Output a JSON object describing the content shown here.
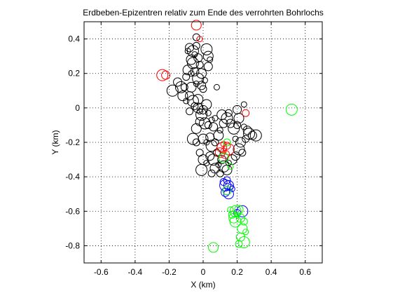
{
  "chart_data": {
    "type": "scatter",
    "title": "Erdbeben-Epizentren relativ zum Ende des verrohrten Bohrlochs",
    "xlabel": "X (km)",
    "ylabel": "Y (km)",
    "xlim": [
      -0.7,
      0.7
    ],
    "ylim": [
      -0.9,
      0.5
    ],
    "xticks": [
      -0.6,
      -0.4,
      -0.2,
      0,
      0.2,
      0.4,
      0.6
    ],
    "xticklabels": [
      "-0.6",
      "-0.4",
      "-0.2",
      "0",
      "0.2",
      "0.4",
      "0.6"
    ],
    "yticks": [
      0.4,
      0.2,
      0,
      -0.2,
      -0.4,
      -0.6,
      -0.8
    ],
    "yticklabels": [
      "0.4",
      "0.2",
      "0",
      "-0.2",
      "-0.4",
      "-0.6",
      "-0.8"
    ],
    "grid": true,
    "grid_style": "dotted",
    "marker": "open-circle",
    "series": [
      {
        "color": "#000000",
        "points": [
          [
            -0.09,
            0.33
          ],
          [
            -0.08,
            0.35
          ],
          [
            -0.06,
            0.33
          ],
          [
            -0.04,
            0.36
          ],
          [
            -0.07,
            0.28
          ],
          [
            -0.05,
            0.31
          ],
          [
            -0.03,
            0.29
          ],
          [
            -0.06,
            0.26
          ],
          [
            -0.02,
            0.25
          ],
          [
            0.03,
            0.3
          ],
          [
            0.04,
            0.28
          ],
          [
            0.03,
            0.24
          ],
          [
            0.02,
            0.34
          ],
          [
            -0.04,
            0.41
          ],
          [
            -0.09,
            0.22
          ],
          [
            -0.07,
            0.2
          ],
          [
            -0.05,
            0.21
          ],
          [
            -0.03,
            0.17
          ],
          [
            -0.1,
            0.18
          ],
          [
            -0.01,
            0.2
          ],
          [
            0.01,
            0.16
          ],
          [
            -0.15,
            0.15
          ],
          [
            -0.13,
            0.12
          ],
          [
            -0.11,
            0.12
          ],
          [
            -0.07,
            0.12
          ],
          [
            -0.04,
            0.14
          ],
          [
            -0.01,
            0.13
          ],
          [
            -0.18,
            0.1
          ],
          [
            0.0,
            0.11
          ],
          [
            -0.12,
            0.07
          ],
          [
            -0.1,
            0.04
          ],
          [
            -0.08,
            0.07
          ],
          [
            -0.06,
            0.04
          ],
          [
            -0.05,
            0.01
          ],
          [
            -0.03,
            0.0
          ],
          [
            -0.02,
            -0.02
          ],
          [
            0.0,
            -0.01
          ],
          [
            -0.01,
            -0.04
          ],
          [
            -0.08,
            -0.02
          ],
          [
            0.02,
            0.02
          ],
          [
            0.03,
            -0.03
          ],
          [
            -0.02,
            -0.08
          ],
          [
            0.01,
            -0.09
          ],
          [
            0.03,
            -0.1
          ],
          [
            -0.04,
            -0.12
          ],
          [
            0.05,
            -0.07
          ],
          [
            0.06,
            -0.11
          ],
          [
            -0.06,
            -0.18
          ],
          [
            -0.04,
            -0.2
          ],
          [
            0.0,
            -0.18
          ],
          [
            0.02,
            -0.2
          ],
          [
            0.04,
            -0.17
          ],
          [
            0.05,
            -0.22
          ],
          [
            0.07,
            -0.2
          ],
          [
            0.09,
            -0.16
          ],
          [
            0.1,
            -0.13
          ],
          [
            0.12,
            -0.09
          ],
          [
            0.14,
            -0.06
          ],
          [
            0.15,
            -0.03
          ],
          [
            0.11,
            -0.04
          ],
          [
            0.07,
            -0.06
          ],
          [
            0.16,
            -0.09
          ],
          [
            0.18,
            -0.12
          ],
          [
            0.2,
            -0.1
          ],
          [
            0.21,
            -0.06
          ],
          [
            0.24,
            -0.11
          ],
          [
            0.26,
            -0.13
          ],
          [
            0.27,
            -0.15
          ],
          [
            0.25,
            -0.18
          ],
          [
            0.22,
            -0.2
          ],
          [
            0.19,
            -0.18
          ],
          [
            0.29,
            -0.16
          ],
          [
            0.31,
            -0.16
          ],
          [
            -0.02,
            -0.26
          ],
          [
            0.0,
            -0.3
          ],
          [
            0.02,
            -0.32
          ],
          [
            0.04,
            -0.28
          ],
          [
            0.06,
            -0.3
          ],
          [
            0.08,
            -0.26
          ],
          [
            0.07,
            -0.35
          ],
          [
            0.09,
            -0.33
          ],
          [
            0.11,
            -0.3
          ],
          [
            0.12,
            -0.34
          ],
          [
            0.1,
            -0.38
          ],
          [
            0.14,
            -0.36
          ],
          [
            0.15,
            -0.32
          ],
          [
            0.19,
            -0.28
          ],
          [
            0.21,
            -0.24
          ],
          [
            0.23,
            -0.26
          ],
          [
            0.17,
            -0.3
          ],
          [
            0.24,
            0.02
          ],
          [
            0.2,
            -0.01
          ],
          [
            -0.01,
            -0.36
          ],
          [
            0.05,
            -0.38
          ],
          [
            -0.03,
            0.05
          ],
          [
            0.08,
            0.12
          ]
        ]
      },
      {
        "color": "#ff0000",
        "points": [
          [
            -0.04,
            0.48
          ],
          [
            -0.02,
            0.4
          ],
          [
            -0.22,
            0.19
          ],
          [
            -0.24,
            0.19
          ],
          [
            0.25,
            -0.03
          ],
          [
            0.11,
            -0.23
          ],
          [
            0.12,
            -0.25
          ],
          [
            0.13,
            -0.27
          ],
          [
            0.15,
            -0.24
          ],
          [
            0.14,
            -0.22
          ],
          [
            0.1,
            -0.26
          ],
          [
            0.12,
            -0.21
          ]
        ]
      },
      {
        "color": "#0000ff",
        "points": [
          [
            0.14,
            -0.42
          ],
          [
            0.15,
            -0.45
          ],
          [
            0.16,
            -0.46
          ],
          [
            0.14,
            -0.48
          ],
          [
            0.13,
            -0.45
          ],
          [
            0.12,
            -0.43
          ],
          [
            0.15,
            -0.5
          ],
          [
            0.17,
            -0.47
          ],
          [
            0.13,
            -0.49
          ],
          [
            0.23,
            -0.6
          ],
          [
            0.2,
            -0.61
          ]
        ]
      },
      {
        "color": "#00ff00",
        "points": [
          [
            0.52,
            -0.01
          ],
          [
            0.14,
            -0.2
          ],
          [
            0.12,
            -0.29
          ],
          [
            0.16,
            -0.34
          ],
          [
            0.14,
            -0.48
          ],
          [
            0.19,
            -0.6
          ],
          [
            0.17,
            -0.62
          ],
          [
            0.18,
            -0.64
          ],
          [
            0.2,
            -0.62
          ],
          [
            0.21,
            -0.59
          ],
          [
            0.19,
            -0.66
          ],
          [
            0.24,
            -0.66
          ],
          [
            0.23,
            -0.7
          ],
          [
            0.25,
            -0.72
          ],
          [
            0.22,
            -0.75
          ],
          [
            0.24,
            -0.78
          ],
          [
            0.21,
            -0.79
          ],
          [
            0.06,
            -0.81
          ],
          [
            0.16,
            -0.59
          ],
          [
            0.22,
            -0.64
          ]
        ]
      }
    ]
  }
}
